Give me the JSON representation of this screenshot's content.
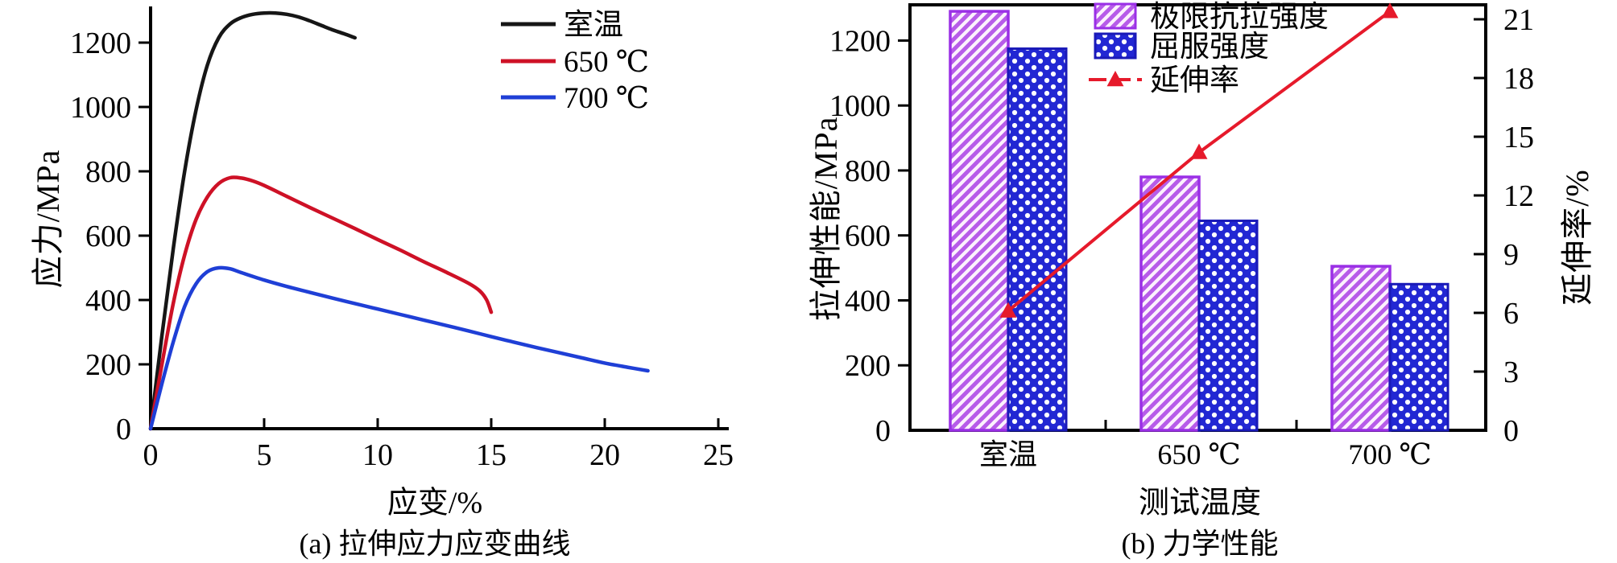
{
  "figure": {
    "caption_a": "(a) 拉伸应力应变曲线",
    "caption_b": "(b) 力学性能"
  },
  "chart_data": [
    {
      "id": "stress-strain-curves",
      "type": "line",
      "xlabel": "应变/%",
      "ylabel": "应力/MPa",
      "xlim": [
        0,
        25
      ],
      "ylim": [
        0,
        1325
      ],
      "xticks": [
        0,
        5,
        10,
        15,
        20,
        25
      ],
      "yticks": [
        0,
        200,
        400,
        600,
        800,
        1000,
        1200
      ],
      "grid": false,
      "legend_position": "top-right",
      "series": [
        {
          "name": "室温",
          "color": "#161616",
          "points": [
            [
              0,
              0
            ],
            [
              0.5,
              290
            ],
            [
              1,
              560
            ],
            [
              1.5,
              800
            ],
            [
              2,
              990
            ],
            [
              2.5,
              1130
            ],
            [
              3,
              1215
            ],
            [
              3.5,
              1258
            ],
            [
              4,
              1278
            ],
            [
              4.5,
              1288
            ],
            [
              5,
              1292
            ],
            [
              5.5,
              1292
            ],
            [
              6,
              1288
            ],
            [
              6.5,
              1280
            ],
            [
              7,
              1268
            ],
            [
              7.5,
              1254
            ],
            [
              8,
              1240
            ],
            [
              8.5,
              1228
            ],
            [
              9,
              1215
            ]
          ]
        },
        {
          "name": "650 ℃",
          "color": "#ce1126",
          "points": [
            [
              0,
              0
            ],
            [
              0.5,
              200
            ],
            [
              1,
              390
            ],
            [
              1.5,
              540
            ],
            [
              2,
              650
            ],
            [
              2.5,
              720
            ],
            [
              3,
              762
            ],
            [
              3.5,
              780
            ],
            [
              4,
              779
            ],
            [
              4.5,
              770
            ],
            [
              5,
              756
            ],
            [
              6,
              722
            ],
            [
              7,
              688
            ],
            [
              8,
              655
            ],
            [
              9,
              622
            ],
            [
              10,
              588
            ],
            [
              11,
              555
            ],
            [
              12,
              520
            ],
            [
              13,
              487
            ],
            [
              14,
              452
            ],
            [
              14.5,
              428
            ],
            [
              14.8,
              400
            ],
            [
              15,
              362
            ]
          ]
        },
        {
          "name": "700 ℃",
          "color": "#1f3fd6",
          "points": [
            [
              0,
              0
            ],
            [
              0.5,
              140
            ],
            [
              1,
              270
            ],
            [
              1.5,
              380
            ],
            [
              2,
              450
            ],
            [
              2.5,
              488
            ],
            [
              3,
              500
            ],
            [
              3.5,
              497
            ],
            [
              4,
              485
            ],
            [
              5,
              462
            ],
            [
              6,
              442
            ],
            [
              7,
              424
            ],
            [
              8,
              406
            ],
            [
              9,
              389
            ],
            [
              10,
              372
            ],
            [
              11,
              355
            ],
            [
              12,
              338
            ],
            [
              13,
              321
            ],
            [
              14,
              304
            ],
            [
              15,
              286
            ],
            [
              16,
              269
            ],
            [
              17,
              252
            ],
            [
              18,
              236
            ],
            [
              19,
              220
            ],
            [
              20,
              204
            ],
            [
              21,
              191
            ],
            [
              21.9,
              180
            ]
          ]
        }
      ]
    },
    {
      "id": "mechanical-properties",
      "type": "bar+line",
      "xlabel": "测试温度",
      "ylabel_left": "拉伸性能/MPa",
      "ylabel_right": "延伸率/%",
      "categories": [
        "室温",
        "650 ℃",
        "700 ℃"
      ],
      "ylim_left": [
        0,
        1310
      ],
      "ylim_right": [
        0,
        21.74
      ],
      "yticks_left": [
        0,
        200,
        400,
        600,
        800,
        1000,
        1200
      ],
      "yticks_right": [
        0,
        3,
        6,
        9,
        12,
        15,
        18,
        21
      ],
      "legend_position": "top-center",
      "series": [
        {
          "name": "极限抗拉强度",
          "kind": "bar",
          "axis": "left",
          "values": [
            1290,
            780,
            505
          ],
          "outline_color": "#9a2fe6",
          "hatch_color": "#b75ce9",
          "hatch_bg": "#fcf2fd",
          "hatch": "diagonal"
        },
        {
          "name": "屈服强度",
          "kind": "bar",
          "axis": "left",
          "values": [
            1175,
            645,
            450
          ],
          "outline_color": "#1a1ab8",
          "fill_color": "#2227d3",
          "dot_color": "#ffffff",
          "hatch": "dots"
        },
        {
          "name": "延伸率",
          "kind": "line",
          "axis": "right",
          "values": [
            6.1,
            14.2,
            21.4
          ],
          "color": "#e61a2b",
          "marker": "triangle"
        }
      ]
    }
  ]
}
